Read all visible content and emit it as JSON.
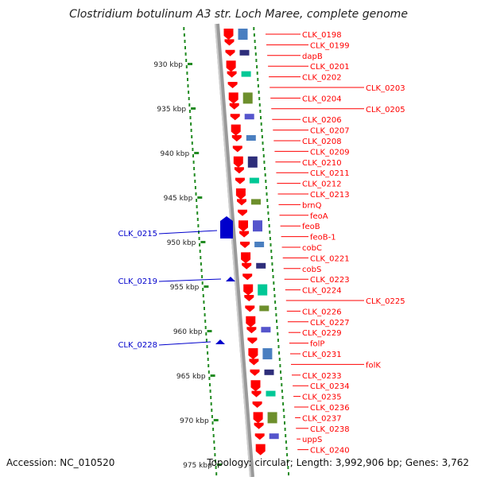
{
  "title": "Clostridium botulinum A3 str. Loch Maree, complete genome",
  "accession": "Accession: NC_010520",
  "topology": "Topology: circular; Length: 3,992,906 bp; Genes: 3,762",
  "kbp_ticks": [
    {
      "label": "930 kbp",
      "kbp": 930
    },
    {
      "label": "935 kbp",
      "kbp": 935
    },
    {
      "label": "940 kbp",
      "kbp": 940
    },
    {
      "label": "945 kbp",
      "kbp": 945
    },
    {
      "label": "950 kbp",
      "kbp": 950
    },
    {
      "label": "955 kbp",
      "kbp": 955
    },
    {
      "label": "960 kbp",
      "kbp": 960
    },
    {
      "label": "965 kbp",
      "kbp": 965
    },
    {
      "label": "970 kbp",
      "kbp": 970
    },
    {
      "label": "975 kbp",
      "kbp": 975
    }
  ],
  "right_genes": [
    "CLK_0198",
    "CLK_0199",
    "dapB",
    "CLK_0201",
    "CLK_0202",
    "CLK_0203",
    "CLK_0204",
    "CLK_0205",
    "CLK_0206",
    "CLK_0207",
    "CLK_0208",
    "CLK_0209",
    "CLK_0210",
    "CLK_0211",
    "CLK_0212",
    "CLK_0213",
    "brnQ",
    "feoA",
    "feoB",
    "feoB-1",
    "cobC",
    "CLK_0221",
    "cobS",
    "CLK_0223",
    "CLK_0224",
    "CLK_0225",
    "CLK_0226",
    "CLK_0227",
    "CLK_0229",
    "folP",
    "CLK_0231",
    "folK",
    "CLK_0233",
    "CLK_0234",
    "CLK_0235",
    "CLK_0236",
    "CLK_0237",
    "CLK_0238",
    "uppS",
    "CLK_0240"
  ],
  "left_genes": [
    "CLK_0215",
    "CLK_0219",
    "CLK_0228"
  ],
  "colors": {
    "forward": "#ff0000",
    "reverse": "#0000cc",
    "axis": "#888888",
    "dots": "#228b22"
  }
}
